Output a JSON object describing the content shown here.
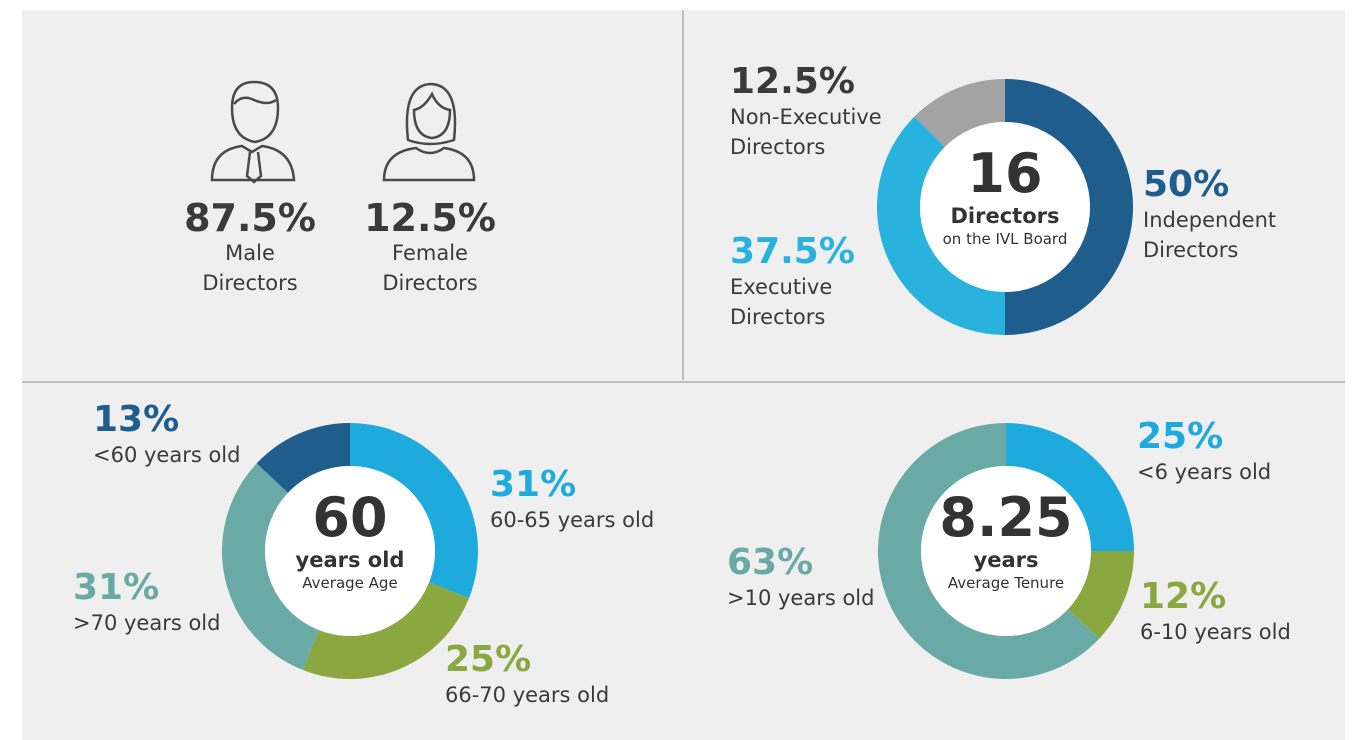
{
  "gender": {
    "items": [
      {
        "value": 87.5,
        "value_label": "87.5%",
        "label": "Male Directors"
      },
      {
        "value": 12.5,
        "value_label": "12.5%",
        "label": "Female Directors"
      }
    ]
  },
  "chart_data": [
    {
      "type": "pie",
      "donut": true,
      "center": {
        "value": 16,
        "title": "Directors",
        "subtitle": "on the IVL Board"
      },
      "categories": [
        "Independent Directors",
        "Executive Directors",
        "Non-Executive Directors"
      ],
      "values": [
        50,
        37.5,
        12.5
      ],
      "value_labels": [
        "50%",
        "37.5%",
        "12.5%"
      ],
      "colors": [
        "#1e5d8c",
        "#29b2de",
        "#a3a3a3"
      ],
      "label_colors": [
        "#1e5d8c",
        "#29b2de",
        "#3a3a3a"
      ]
    },
    {
      "type": "pie",
      "donut": true,
      "center": {
        "value": 60,
        "title": "years old",
        "subtitle": "Average Age"
      },
      "categories": [
        "60-65 years old",
        "66-70 years old",
        ">70 years old",
        "<60 years old"
      ],
      "values": [
        31,
        25,
        31,
        13
      ],
      "value_labels": [
        "31%",
        "25%",
        "31%",
        "13%"
      ],
      "colors": [
        "#1eaadc",
        "#8aa83f",
        "#6aaaa6",
        "#1e5d8c"
      ],
      "label_colors": [
        "#1eaadc",
        "#8aa83f",
        "#6aaaa6",
        "#1e5d8c"
      ]
    },
    {
      "type": "pie",
      "donut": true,
      "center": {
        "value": 8.25,
        "title": "years",
        "subtitle": "Average Tenure"
      },
      "categories": [
        "<6 years old",
        "6-10 years old",
        ">10 years old"
      ],
      "values": [
        25,
        12,
        63
      ],
      "value_labels": [
        "25%",
        "12%",
        "63%"
      ],
      "colors": [
        "#1eaadc",
        "#8aa83f",
        "#6aaaa6"
      ],
      "label_colors": [
        "#1eaadc",
        "#8aa83f",
        "#6aaaa6"
      ]
    }
  ]
}
